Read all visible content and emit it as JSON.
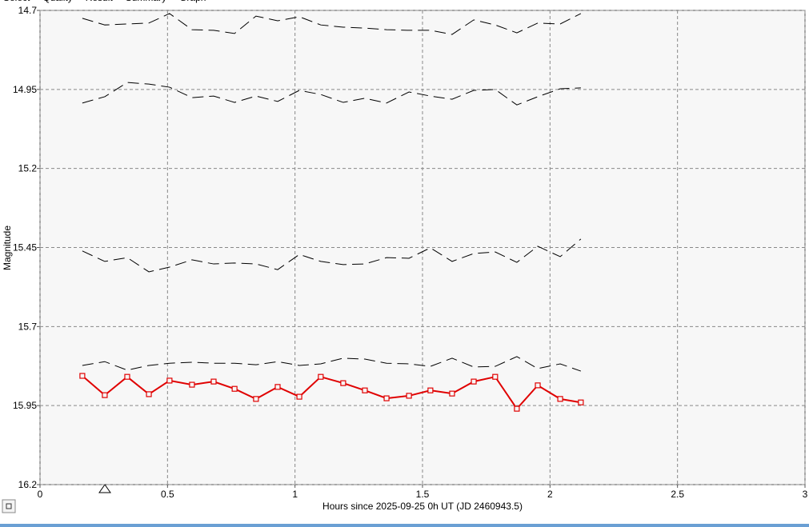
{
  "tabs": [
    "Select",
    "Quality",
    "Result",
    "Summary",
    "Graph"
  ],
  "chart_data": {
    "type": "line",
    "x_label": "Hours since 2025-09-25 0h UT (JD 2460943.5)",
    "y_label": "Magnitude",
    "xlim": [
      0,
      3
    ],
    "xticks": [
      0,
      0.5,
      1,
      1.5,
      2,
      2.5,
      3
    ],
    "ylim": [
      14.7,
      16.2
    ],
    "yticks": [
      14.7,
      14.95,
      15.2,
      15.45,
      15.7,
      15.95,
      16.2
    ],
    "y_inverted": true,
    "grid": true,
    "x": [
      0.166,
      0.254,
      0.342,
      0.427,
      0.508,
      0.596,
      0.681,
      0.763,
      0.847,
      0.932,
      1.017,
      1.101,
      1.189,
      1.274,
      1.359,
      1.447,
      1.531,
      1.616,
      1.701,
      1.785,
      1.87,
      1.952,
      2.04,
      2.121
    ],
    "series": [
      {
        "color": "#000000",
        "line_style": "dashed",
        "values": [
          14.725,
          14.746,
          14.743,
          14.74,
          14.71,
          14.761,
          14.763,
          14.773,
          14.718,
          14.733,
          14.72,
          14.746,
          14.753,
          14.756,
          14.761,
          14.763,
          14.763,
          14.776,
          14.73,
          14.746,
          14.771,
          14.74,
          14.743,
          14.71
        ]
      },
      {
        "color": "#000000",
        "line_style": "dashed",
        "values": [
          14.993,
          14.973,
          14.928,
          14.933,
          14.943,
          14.976,
          14.971,
          14.991,
          14.971,
          14.988,
          14.953,
          14.966,
          14.991,
          14.978,
          14.993,
          14.958,
          14.971,
          14.981,
          14.953,
          14.95,
          14.999,
          14.973,
          14.948,
          14.945
        ]
      },
      {
        "color": "#000000",
        "line_style": "dashed",
        "values": [
          15.461,
          15.494,
          15.482,
          15.527,
          15.512,
          15.489,
          15.502,
          15.499,
          15.502,
          15.52,
          15.472,
          15.494,
          15.504,
          15.502,
          15.482,
          15.484,
          15.451,
          15.494,
          15.469,
          15.464,
          15.497,
          15.446,
          15.479,
          15.423
        ]
      },
      {
        "color": "#000000",
        "line_style": "dashed",
        "values": [
          15.823,
          15.811,
          15.838,
          15.823,
          15.816,
          15.813,
          15.816,
          15.816,
          15.821,
          15.811,
          15.823,
          15.818,
          15.8,
          15.803,
          15.816,
          15.818,
          15.826,
          15.8,
          15.828,
          15.826,
          15.795,
          15.833,
          15.818,
          15.841
        ]
      },
      {
        "color": "#e00000",
        "line_style": "solid",
        "markers": "square",
        "values": [
          15.856,
          15.917,
          15.859,
          15.914,
          15.871,
          15.884,
          15.874,
          15.897,
          15.929,
          15.891,
          15.922,
          15.859,
          15.879,
          15.902,
          15.927,
          15.919,
          15.902,
          15.912,
          15.874,
          15.859,
          15.96,
          15.886,
          15.929,
          15.94
        ]
      }
    ]
  }
}
